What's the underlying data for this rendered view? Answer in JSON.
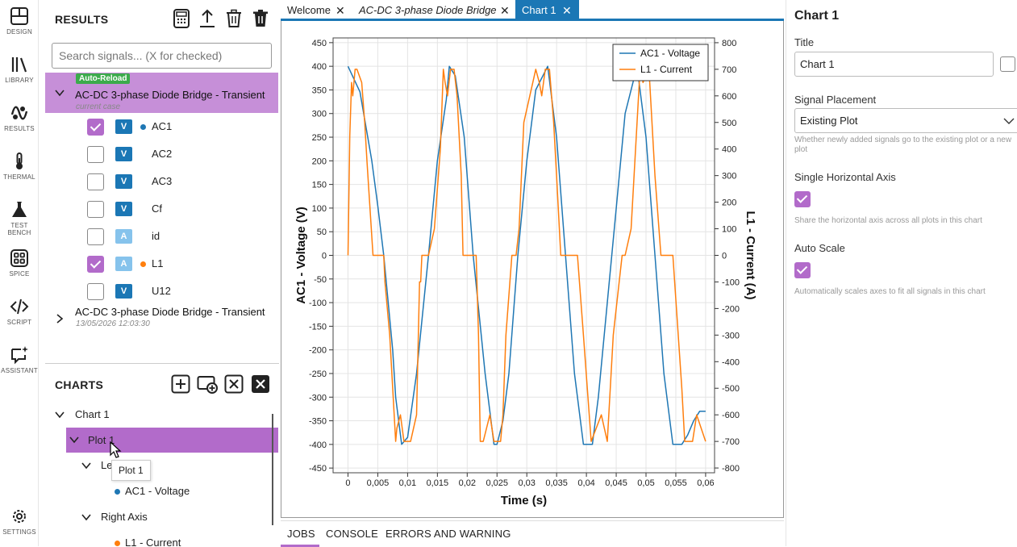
{
  "nav": {
    "items": [
      {
        "id": "design",
        "label": "DESIGN",
        "icon": "design-icon"
      },
      {
        "id": "library",
        "label": "LIBRARY",
        "icon": "library-icon"
      },
      {
        "id": "results",
        "label": "RESULTS",
        "icon": "results-icon"
      },
      {
        "id": "thermal",
        "label": "THERMAL",
        "icon": "thermometer-icon"
      },
      {
        "id": "testbench",
        "label": "TEST BENCH",
        "icon": "flask-icon"
      },
      {
        "id": "spice",
        "label": "SPICE",
        "icon": "grid-icon"
      },
      {
        "id": "script",
        "label": "SCRIPT",
        "icon": "code-icon"
      },
      {
        "id": "assistant",
        "label": "ASSISTANT",
        "icon": "sparkle-chat-icon"
      }
    ],
    "settings_label": "SETTINGS"
  },
  "results": {
    "title": "RESULTS",
    "toolbar_icons": [
      "calculator-icon",
      "export-icon",
      "trash-icon",
      "trash-filled-icon"
    ],
    "search_placeholder": "Search signals... (X for checked)",
    "case1": {
      "badge": "Auto-Reload",
      "title": "AC-DC 3-phase Diode Bridge - Transient",
      "subtitle": "current case",
      "signals": [
        {
          "type": "V",
          "name": "AC1",
          "checked": true,
          "dot": "#1f77b4"
        },
        {
          "type": "V",
          "name": "AC2",
          "checked": false,
          "dot": ""
        },
        {
          "type": "V",
          "name": "AC3",
          "checked": false,
          "dot": ""
        },
        {
          "type": "V",
          "name": "Cf",
          "checked": false,
          "dot": ""
        },
        {
          "type": "A",
          "name": "id",
          "checked": false,
          "dot": ""
        },
        {
          "type": "A",
          "name": "L1",
          "checked": true,
          "dot": "#ff7f0e"
        },
        {
          "type": "V",
          "name": "U12",
          "checked": false,
          "dot": ""
        }
      ]
    },
    "case2": {
      "title": "AC-DC 3-phase Diode Bridge - Transient",
      "subtitle": "13/05/2026 12:03:30"
    }
  },
  "charts": {
    "title": "CHARTS",
    "toolbar_icons": [
      "add-chart-icon",
      "add-plot-icon",
      "close-outline-icon",
      "close-filled-icon"
    ],
    "tree": {
      "chart": "Chart 1",
      "plot": "Plot 1",
      "left_axis": "Le",
      "left_signal": "AC1 - Voltage",
      "right_axis": "Right Axis",
      "right_signal": "L1 - Current"
    },
    "tooltip": "Plot 1"
  },
  "tabs": [
    {
      "label": "Welcome",
      "italic": false,
      "active": false
    },
    {
      "label": "AC-DC 3-phase Diode Bridge",
      "italic": true,
      "active": false
    },
    {
      "label": "Chart 1",
      "italic": false,
      "active": true
    }
  ],
  "bottom_tabs": [
    "JOBS",
    "CONSOLE",
    "ERRORS AND WARNING"
  ],
  "props": {
    "heading": "Chart 1",
    "title_label": "Title",
    "title_value": "Chart 1",
    "placement_label": "Signal Placement",
    "placement_value": "Existing Plot",
    "placement_help": "Whether newly added signals go to the existing plot or a new plot",
    "single_axis_label": "Single Horizontal Axis",
    "single_axis_checked": true,
    "single_axis_help": "Share the horizontal axis across all plots in this chart",
    "autoscale_label": "Auto Scale",
    "autoscale_checked": true,
    "autoscale_help": "Automatically scales axes to fit all signals in this chart"
  },
  "chart_data": {
    "type": "line",
    "xlabel": "Time (s)",
    "ylabel_left": "AC1 - Voltage (V)",
    "ylabel_right": "L1 - Current (A)",
    "xlim": [
      -0.0025,
      0.0615
    ],
    "ylim_left": [
      -460,
      460
    ],
    "ylim_right": [
      -818,
      818
    ],
    "xticks": [
      "0",
      "0,005",
      "0,01",
      "0,015",
      "0,02",
      "0,025",
      "0,03",
      "0,035",
      "0,04",
      "0,045",
      "0,05",
      "0,055",
      "0,06"
    ],
    "yticks_left": [
      -450,
      -400,
      -350,
      -300,
      -250,
      -200,
      -150,
      -100,
      -50,
      0,
      50,
      100,
      150,
      200,
      250,
      300,
      350,
      400,
      450
    ],
    "yticks_right": [
      -800,
      -700,
      -600,
      -500,
      -400,
      -300,
      -200,
      -100,
      0,
      100,
      200,
      300,
      400,
      500,
      600,
      700,
      800
    ],
    "grid": true,
    "legend_position": "top-right",
    "series": [
      {
        "name": "AC1 - Voltage",
        "axis": "left",
        "color": "#1f77b4",
        "x": [
          0,
          0.002,
          0.004,
          0.005,
          0.006,
          0.0075,
          0.008,
          0.009,
          0.01,
          0.0115,
          0.0125,
          0.0135,
          0.015,
          0.0165,
          0.017,
          0.018,
          0.0195,
          0.021,
          0.022,
          0.023,
          0.0245,
          0.025,
          0.026,
          0.027,
          0.0285,
          0.03,
          0.0315,
          0.0335,
          0.035,
          0.0365,
          0.038,
          0.0395,
          0.041,
          0.042,
          0.0435,
          0.045,
          0.0465,
          0.0485,
          0.05,
          0.0515,
          0.053,
          0.0545,
          0.056,
          0.057,
          0.058,
          0.059,
          0.06
        ],
        "y": [
          400,
          346,
          200,
          105,
          0,
          -200,
          -300,
          -400,
          -385,
          -250,
          -125,
          0,
          200,
          330,
          400,
          380,
          250,
          0,
          -125,
          -250,
          -400,
          -400,
          -350,
          -250,
          0,
          200,
          350,
          400,
          250,
          0,
          -250,
          -400,
          -400,
          -300,
          -100,
          100,
          300,
          400,
          250,
          0,
          -250,
          -400,
          -400,
          -380,
          -350,
          -330,
          -330
        ]
      },
      {
        "name": "L1 - Current",
        "axis": "right",
        "color": "#ff7f0e",
        "x": [
          0,
          0.0003,
          0.0006,
          0.0008,
          0.0012,
          0.0015,
          0.0023,
          0.0028,
          0.0032,
          0.0042,
          0.0048,
          0.0058,
          0.006,
          0.0062,
          0.007,
          0.0075,
          0.008,
          0.0082,
          0.0088,
          0.0094,
          0.0105,
          0.0115,
          0.012,
          0.0122,
          0.0124,
          0.0135,
          0.0145,
          0.0155,
          0.016,
          0.0163,
          0.0167,
          0.0172,
          0.0178,
          0.0183,
          0.019,
          0.0193,
          0.0198,
          0.0215,
          0.0219,
          0.0222,
          0.0227,
          0.0238,
          0.0245,
          0.0256,
          0.026,
          0.0265,
          0.0275,
          0.0282,
          0.0287,
          0.0295,
          0.0315,
          0.0321,
          0.0325,
          0.0331,
          0.0338,
          0.0345,
          0.035,
          0.0357,
          0.0365,
          0.0385,
          0.0395,
          0.0408,
          0.0425,
          0.0435,
          0.0445,
          0.046,
          0.0465,
          0.0475,
          0.0485,
          0.049,
          0.0495,
          0.0505,
          0.0515,
          0.0525,
          0.0545,
          0.056,
          0.0565,
          0.0578,
          0.0585,
          0.06
        ],
        "y": [
          0,
          450,
          650,
          600,
          700,
          700,
          650,
          500,
          350,
          0,
          0,
          0,
          0,
          -100,
          -300,
          -500,
          -700,
          -650,
          -600,
          -700,
          -700,
          -600,
          -100,
          -100,
          0,
          0,
          100,
          400,
          700,
          650,
          600,
          700,
          700,
          600,
          300,
          0,
          0,
          0,
          -300,
          -700,
          -700,
          -600,
          -700,
          -700,
          -600,
          -300,
          0,
          0,
          100,
          500,
          700,
          650,
          600,
          700,
          700,
          500,
          300,
          0,
          0,
          0,
          -300,
          -700,
          -600,
          -700,
          -300,
          0,
          0,
          100,
          500,
          700,
          650,
          700,
          300,
          0,
          0,
          -500,
          -700,
          -700,
          -600,
          -700
        ]
      }
    ]
  }
}
